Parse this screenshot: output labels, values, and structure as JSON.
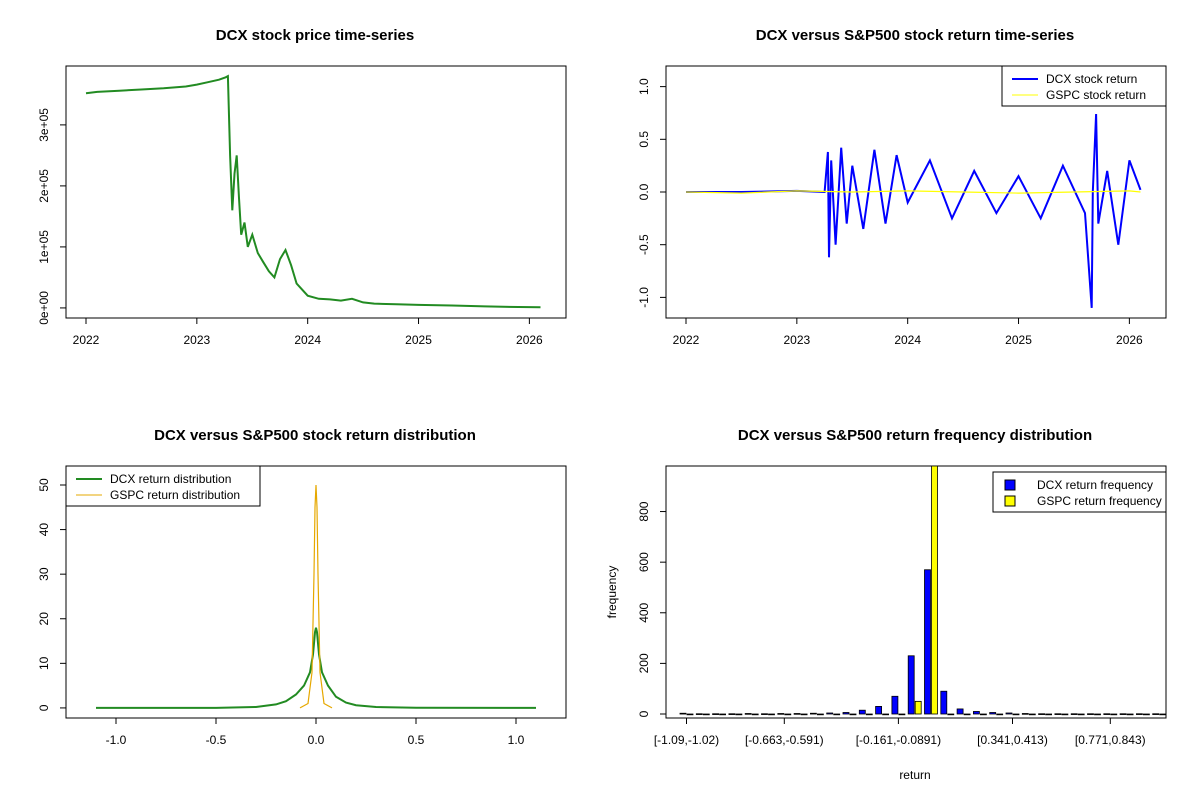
{
  "chart_data": [
    {
      "type": "line",
      "title": "DCX stock price time-series",
      "xlabel": "",
      "ylabel": "",
      "x_ticks": [
        "2022",
        "2023",
        "2024",
        "2025",
        "2026"
      ],
      "y_ticks": [
        "0e+00",
        "1e+05",
        "2e+05",
        "3e+05"
      ],
      "xlim": [
        2022.0,
        2026.15
      ],
      "ylim": [
        0,
        380000
      ],
      "grid": false,
      "series": [
        {
          "color": "#228b22",
          "x": [
            2022.0,
            2022.1,
            2022.3,
            2022.5,
            2022.7,
            2022.9,
            2023.0,
            2023.1,
            2023.2,
            2023.26,
            2023.28,
            2023.3,
            2023.32,
            2023.34,
            2023.36,
            2023.38,
            2023.4,
            2023.43,
            2023.46,
            2023.5,
            2023.55,
            2023.6,
            2023.65,
            2023.7,
            2023.75,
            2023.8,
            2023.85,
            2023.9,
            2023.95,
            2024.0,
            2024.1,
            2024.2,
            2024.3,
            2024.4,
            2024.5,
            2024.6,
            2024.8,
            2025.0,
            2025.3,
            2025.6,
            2025.9,
            2026.1
          ],
          "y": [
            352000,
            354000,
            356000,
            358000,
            360000,
            363000,
            366000,
            370000,
            374000,
            378000,
            380000,
            250000,
            160000,
            220000,
            250000,
            180000,
            120000,
            140000,
            100000,
            120000,
            90000,
            75000,
            60000,
            50000,
            80000,
            95000,
            70000,
            40000,
            30000,
            20000,
            15000,
            14000,
            12000,
            15000,
            9000,
            7000,
            6000,
            5000,
            4000,
            2500,
            1500,
            1000
          ]
        }
      ]
    },
    {
      "type": "line",
      "title": "DCX versus S&P500 stock return time-series",
      "xlabel": "",
      "ylabel": "",
      "x_ticks": [
        "2022",
        "2023",
        "2024",
        "2025",
        "2026"
      ],
      "y_ticks": [
        "-1.0",
        "-0.5",
        "0.0",
        "0.5",
        "1.0"
      ],
      "xlim": [
        2022.0,
        2026.15
      ],
      "ylim": [
        -1.1,
        1.1
      ],
      "legend": "top-right",
      "series": [
        {
          "name": "DCX stock return",
          "color": "#0000ff",
          "x": [
            2022.0,
            2022.5,
            2023.0,
            2023.25,
            2023.28,
            2023.29,
            2023.31,
            2023.35,
            2023.4,
            2023.45,
            2023.5,
            2023.6,
            2023.7,
            2023.8,
            2023.9,
            2024.0,
            2024.2,
            2024.4,
            2024.6,
            2024.8,
            2025.0,
            2025.2,
            2025.4,
            2025.6,
            2025.66,
            2025.67,
            2025.7,
            2025.72,
            2025.8,
            2025.9,
            2026.0,
            2026.1
          ],
          "y": [
            0.0,
            0.0,
            0.01,
            0.0,
            0.38,
            -0.62,
            0.3,
            -0.5,
            0.42,
            -0.3,
            0.25,
            -0.35,
            0.4,
            -0.3,
            0.35,
            -0.1,
            0.3,
            -0.25,
            0.2,
            -0.2,
            0.15,
            -0.25,
            0.25,
            -0.2,
            -1.1,
            0.0,
            0.74,
            -0.3,
            0.2,
            -0.5,
            0.3,
            0.02
          ]
        },
        {
          "name": "GSPC stock return",
          "color": "#ffff00",
          "x": [
            2022.0,
            2022.5,
            2023.0,
            2023.5,
            2024.0,
            2024.5,
            2025.0,
            2025.5,
            2026.0,
            2026.1
          ],
          "y": [
            0.0,
            -0.01,
            0.01,
            0.0,
            0.01,
            0.0,
            -0.01,
            0.0,
            0.01,
            0.0
          ]
        }
      ]
    },
    {
      "type": "line",
      "title": "DCX versus S&P500 stock return distribution",
      "xlabel": "",
      "ylabel": "",
      "x_ticks": [
        "-1.0",
        "-0.5",
        "0.0",
        "0.5",
        "1.0"
      ],
      "y_ticks": [
        "0",
        "10",
        "20",
        "30",
        "40",
        "50"
      ],
      "xlim": [
        -1.15,
        1.15
      ],
      "ylim": [
        0,
        52
      ],
      "legend": "top-left",
      "series": [
        {
          "name": "DCX return distribution",
          "color": "#228b22",
          "x": [
            -1.1,
            -0.5,
            -0.3,
            -0.2,
            -0.15,
            -0.1,
            -0.06,
            -0.03,
            -0.015,
            -0.005,
            0.0,
            0.005,
            0.015,
            0.03,
            0.06,
            0.1,
            0.15,
            0.2,
            0.3,
            0.5,
            1.1
          ],
          "y": [
            0.0,
            0.0,
            0.2,
            0.8,
            1.5,
            3.0,
            5.0,
            8.0,
            12.0,
            17.0,
            18.0,
            17.0,
            12.0,
            8.0,
            5.0,
            2.5,
            1.2,
            0.6,
            0.2,
            0.05,
            0.0
          ]
        },
        {
          "name": "GSPC return distribution",
          "color": "#e6a800",
          "x": [
            -0.08,
            -0.04,
            -0.02,
            -0.01,
            -0.005,
            0.0,
            0.005,
            0.01,
            0.02,
            0.04,
            0.08
          ],
          "y": [
            0.0,
            1.0,
            8.0,
            30.0,
            45.0,
            50.0,
            45.0,
            30.0,
            8.0,
            1.0,
            0.0
          ]
        }
      ]
    },
    {
      "type": "bar",
      "title": "DCX versus S&P500 return frequency distribution",
      "xlabel": "return",
      "ylabel": "frequency",
      "x_ticks": [
        "[-1.09,-1.02)",
        "[-0.663,-0.591)",
        "[-0.161,-0.0891)",
        "[0.341,0.413)",
        "[0.771,0.843)"
      ],
      "x_tick_bins": [
        0,
        6,
        13,
        20,
        26
      ],
      "y_ticks": [
        "0",
        "200",
        "400",
        "600",
        "800"
      ],
      "ylim": [
        0,
        980
      ],
      "legend": "top-right",
      "bin_count": 30,
      "series": [
        {
          "name": "DCX return frequency",
          "color": "#0000ff",
          "values": [
            3,
            1,
            1,
            1,
            2,
            1,
            2,
            2,
            3,
            4,
            6,
            15,
            30,
            70,
            230,
            570,
            90,
            20,
            10,
            6,
            4,
            2,
            1,
            1,
            1,
            1,
            1,
            1,
            1,
            1
          ]
        },
        {
          "name": "GSPC return frequency",
          "color": "#ffff00",
          "values": [
            0,
            0,
            0,
            0,
            0,
            0,
            0,
            0,
            0,
            0,
            0,
            0,
            0,
            0,
            50,
            980,
            0,
            0,
            0,
            0,
            0,
            0,
            0,
            0,
            0,
            0,
            0,
            0,
            0,
            0
          ]
        }
      ]
    }
  ]
}
